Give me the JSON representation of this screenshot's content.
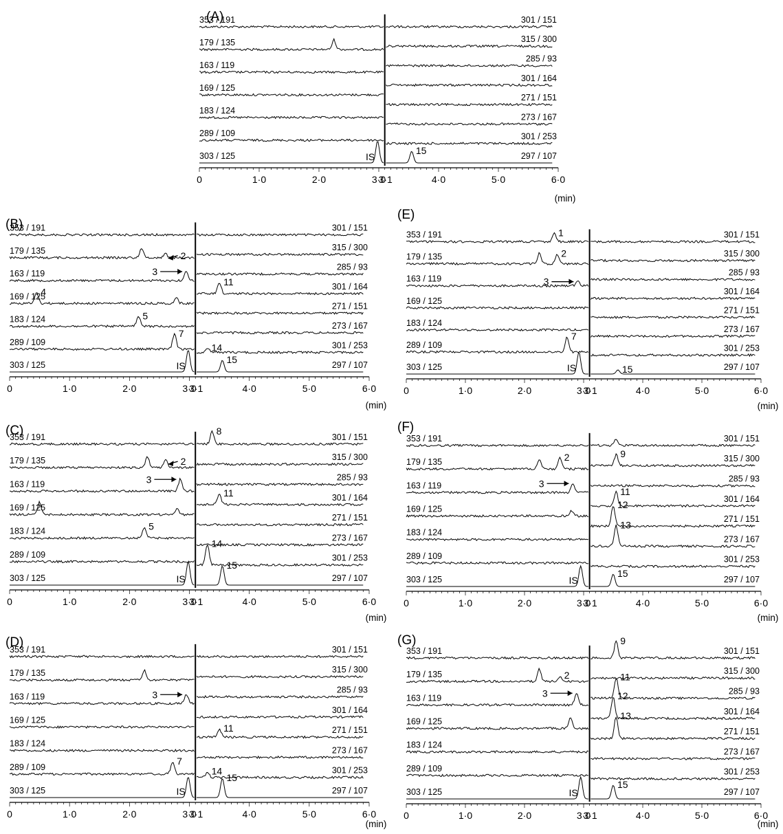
{
  "chart_data": {
    "type": "line",
    "x_unit": "(min)",
    "x_ticks": [
      "0",
      "1·0",
      "2·0",
      "3·0",
      "4·0",
      "5·0",
      "6·0"
    ],
    "break_tick": "3·1",
    "xlim": [
      0,
      6.0
    ],
    "left_segment_xlim": [
      0,
      3.1
    ],
    "right_segment_xlim": [
      3.1,
      6.0
    ],
    "left_transitions": [
      "353 / 191",
      "179 / 135",
      "163 / 119",
      "169 / 125",
      "183 / 124",
      "289 / 109",
      "303 / 125"
    ],
    "right_transitions": [
      "301 / 151",
      "315 / 300",
      "285 / 93",
      "301 / 164",
      "271 / 151",
      "273 / 167",
      "301 / 253",
      "297 / 107"
    ],
    "panels": [
      {
        "label": "(A)",
        "peaks": [
          {
            "side": "left",
            "trace": 1,
            "time": 2.25,
            "height": 0.7
          },
          {
            "side": "left",
            "trace": 6,
            "time": 2.98,
            "height": 1.6,
            "label": "IS"
          },
          {
            "side": "right",
            "trace": 7,
            "time": 3.55,
            "height": 0.85,
            "label": "15"
          }
        ]
      },
      {
        "label": "(B)",
        "peaks": [
          {
            "side": "left",
            "trace": 1,
            "time": 2.2,
            "height": 0.7
          },
          {
            "side": "left",
            "trace": 1,
            "time": 2.6,
            "height": 0.3,
            "label": "2"
          },
          {
            "side": "left",
            "trace": 2,
            "time": 2.95,
            "height": 0.7,
            "label": "3"
          },
          {
            "side": "left",
            "trace": 3,
            "time": 0.45,
            "height": 0.8,
            "label": "4"
          },
          {
            "side": "left",
            "trace": 3,
            "time": 2.78,
            "height": 0.4
          },
          {
            "side": "left",
            "trace": 4,
            "time": 2.15,
            "height": 0.7,
            "label": "5"
          },
          {
            "side": "left",
            "trace": 5,
            "time": 2.75,
            "height": 1.1,
            "label": "7"
          },
          {
            "side": "left",
            "trace": 6,
            "time": 2.98,
            "height": 1.6,
            "label": "IS"
          },
          {
            "side": "right",
            "trace": 3,
            "time": 3.5,
            "height": 0.8,
            "label": "11"
          },
          {
            "side": "right",
            "trace": 6,
            "time": 3.3,
            "height": 0.3,
            "label": "14"
          },
          {
            "side": "right",
            "trace": 7,
            "time": 3.55,
            "height": 0.85,
            "label": "15"
          }
        ]
      },
      {
        "label": "(C)",
        "peaks": [
          {
            "side": "left",
            "trace": 1,
            "time": 2.3,
            "height": 0.8
          },
          {
            "side": "left",
            "trace": 1,
            "time": 2.6,
            "height": 0.6,
            "label": "2"
          },
          {
            "side": "left",
            "trace": 2,
            "time": 2.85,
            "height": 0.9,
            "label": "3"
          },
          {
            "side": "left",
            "trace": 3,
            "time": 0.5,
            "height": 0.9
          },
          {
            "side": "left",
            "trace": 3,
            "time": 2.8,
            "height": 0.4
          },
          {
            "side": "left",
            "trace": 4,
            "time": 2.25,
            "height": 0.8,
            "label": "5"
          },
          {
            "side": "left",
            "trace": 6,
            "time": 2.98,
            "height": 1.7,
            "label": "IS"
          },
          {
            "side": "right",
            "trace": 0,
            "time": 3.38,
            "height": 0.9,
            "label": "8"
          },
          {
            "side": "right",
            "trace": 3,
            "time": 3.5,
            "height": 0.8,
            "label": "11"
          },
          {
            "side": "right",
            "trace": 6,
            "time": 3.3,
            "height": 1.5,
            "label": "14"
          },
          {
            "side": "right",
            "trace": 7,
            "time": 3.55,
            "height": 1.4,
            "label": "15"
          }
        ]
      },
      {
        "label": "(D)",
        "peaks": [
          {
            "side": "left",
            "trace": 1,
            "time": 2.25,
            "height": 0.7
          },
          {
            "side": "left",
            "trace": 2,
            "time": 2.95,
            "height": 0.7,
            "label": "3"
          },
          {
            "side": "left",
            "trace": 5,
            "time": 2.72,
            "height": 0.9,
            "label": "7"
          },
          {
            "side": "left",
            "trace": 6,
            "time": 2.98,
            "height": 1.5,
            "label": "IS"
          },
          {
            "side": "right",
            "trace": 4,
            "time": 3.5,
            "height": 0.6,
            "label": "11"
          },
          {
            "side": "right",
            "trace": 6,
            "time": 3.3,
            "height": 0.4,
            "label": "14"
          },
          {
            "side": "right",
            "trace": 7,
            "time": 3.55,
            "height": 1.4,
            "label": "15"
          }
        ]
      },
      {
        "label": "(E)",
        "peaks": [
          {
            "side": "left",
            "trace": 0,
            "time": 2.5,
            "height": 0.6,
            "label": "1"
          },
          {
            "side": "left",
            "trace": 1,
            "time": 2.25,
            "height": 0.8
          },
          {
            "side": "left",
            "trace": 1,
            "time": 2.55,
            "height": 0.7,
            "label": "2"
          },
          {
            "side": "left",
            "trace": 2,
            "time": 2.9,
            "height": 0.35,
            "label": "3"
          },
          {
            "side": "left",
            "trace": 5,
            "time": 2.72,
            "height": 1.1,
            "label": "7"
          },
          {
            "side": "left",
            "trace": 6,
            "time": 2.92,
            "height": 1.6,
            "label": "IS"
          },
          {
            "side": "right",
            "trace": 7,
            "time": 3.58,
            "height": 0.3,
            "label": "15"
          }
        ]
      },
      {
        "label": "(F)",
        "peaks": [
          {
            "side": "left",
            "trace": 1,
            "time": 2.25,
            "height": 0.7
          },
          {
            "side": "left",
            "trace": 1,
            "time": 2.6,
            "height": 0.8,
            "label": "2"
          },
          {
            "side": "left",
            "trace": 2,
            "time": 2.82,
            "height": 0.7,
            "label": "3"
          },
          {
            "side": "left",
            "trace": 3,
            "time": 2.8,
            "height": 0.4
          },
          {
            "side": "left",
            "trace": 6,
            "time": 2.95,
            "height": 1.5,
            "label": "IS"
          },
          {
            "side": "right",
            "trace": 0,
            "time": 3.55,
            "height": 0.5
          },
          {
            "side": "right",
            "trace": 1,
            "time": 3.55,
            "height": 0.8,
            "label": "9"
          },
          {
            "side": "right",
            "trace": 3,
            "time": 3.55,
            "height": 1.0,
            "label": "11"
          },
          {
            "side": "right",
            "trace": 4,
            "time": 3.5,
            "height": 1.5,
            "label": "12"
          },
          {
            "side": "right",
            "trace": 5,
            "time": 3.55,
            "height": 1.5,
            "label": "13"
          },
          {
            "side": "right",
            "trace": 7,
            "time": 3.5,
            "height": 0.9,
            "label": "15"
          }
        ]
      },
      {
        "label": "(G)",
        "peaks": [
          {
            "side": "left",
            "trace": 1,
            "time": 2.25,
            "height": 0.9
          },
          {
            "side": "left",
            "trace": 1,
            "time": 2.6,
            "height": 0.4,
            "label": "2"
          },
          {
            "side": "left",
            "trace": 2,
            "time": 2.88,
            "height": 0.9,
            "label": "3"
          },
          {
            "side": "left",
            "trace": 3,
            "time": 2.78,
            "height": 0.8
          },
          {
            "side": "left",
            "trace": 6,
            "time": 2.95,
            "height": 1.6,
            "label": "IS"
          },
          {
            "side": "right",
            "trace": 0,
            "time": 3.55,
            "height": 1.2,
            "label": "9"
          },
          {
            "side": "right",
            "trace": 2,
            "time": 3.55,
            "height": 1.5,
            "label": "11"
          },
          {
            "side": "right",
            "trace": 3,
            "time": 3.5,
            "height": 1.6,
            "label": "12"
          },
          {
            "side": "right",
            "trace": 4,
            "time": 3.55,
            "height": 1.6,
            "label": "13"
          },
          {
            "side": "right",
            "trace": 7,
            "time": 3.5,
            "height": 1.0,
            "label": "15"
          }
        ]
      }
    ]
  }
}
